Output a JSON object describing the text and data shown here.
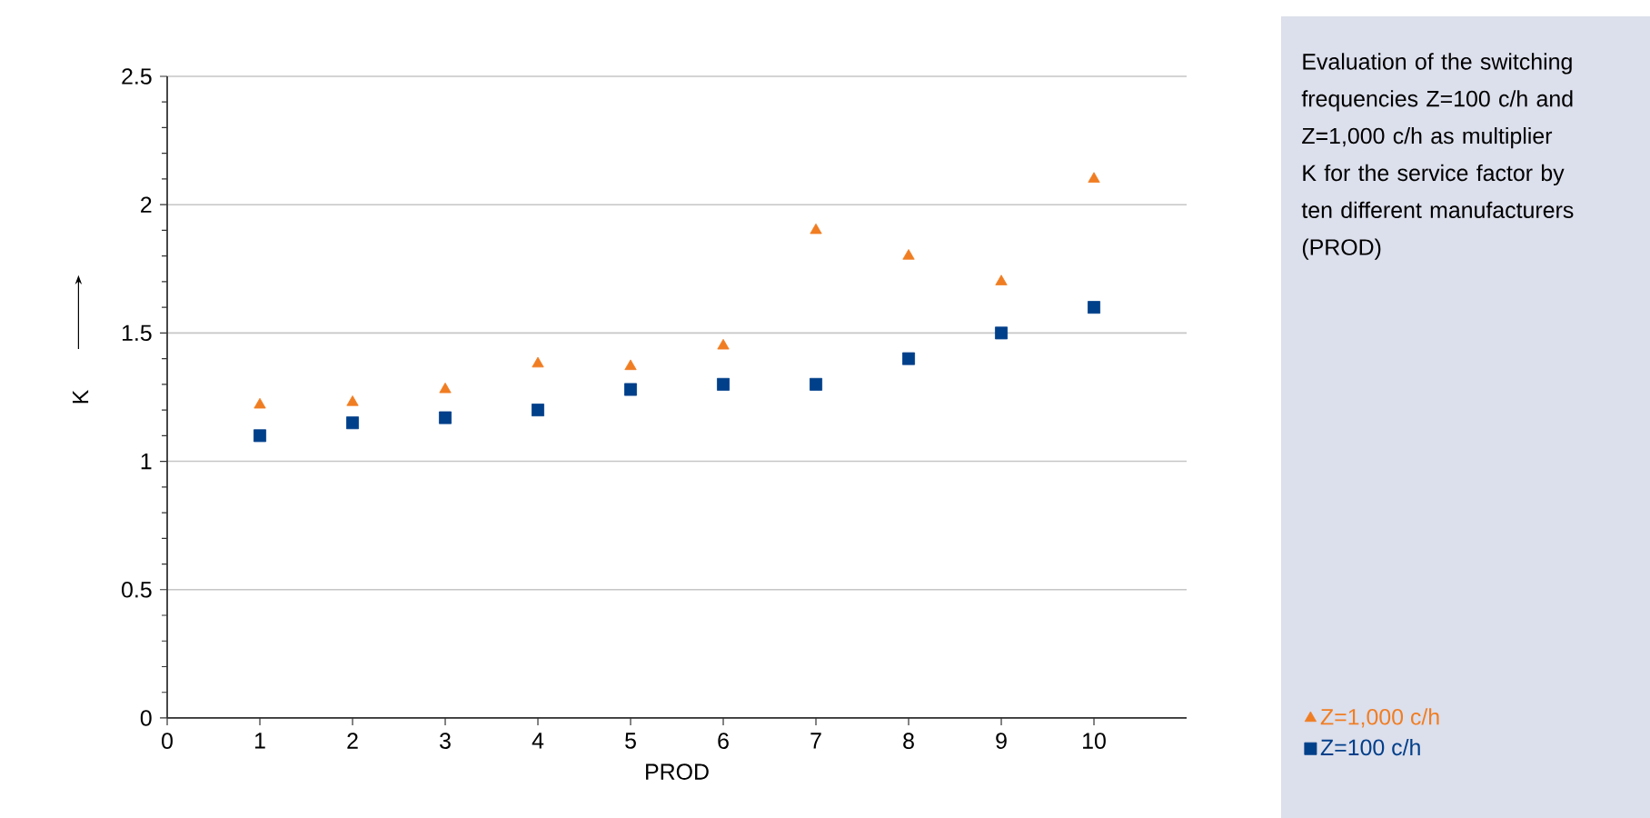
{
  "chart_data": {
    "type": "scatter",
    "xlabel": "PROD",
    "ylabel": "K",
    "annotations": [
      "Evaluation of the switching frequencies Z=100 c/h and Z=1,000 c/h as multiplier K for the service factor by ten different manufacturers (PROD)"
    ],
    "x": [
      1,
      2,
      3,
      4,
      5,
      6,
      7,
      8,
      9,
      10
    ],
    "series": [
      {
        "name": "Z=1,000 c/h",
        "color": "#f07d22",
        "marker": "triangle",
        "values": [
          1.22,
          1.23,
          1.28,
          1.38,
          1.37,
          1.45,
          1.9,
          1.8,
          1.7,
          2.1
        ]
      },
      {
        "name": "Z=100 c/h",
        "color": "#003f8a",
        "marker": "square",
        "values": [
          1.1,
          1.15,
          1.17,
          1.2,
          1.28,
          1.3,
          1.3,
          1.4,
          1.5,
          1.6
        ]
      }
    ],
    "xlim": [
      0,
      11
    ],
    "xticks": [
      0,
      1,
      2,
      3,
      4,
      5,
      6,
      7,
      8,
      9,
      10
    ],
    "ylim": [
      0,
      2.5
    ],
    "yticks": [
      0,
      0.5,
      1,
      1.5,
      2,
      2.5
    ],
    "grid": "y",
    "legend": "bottom right"
  }
}
